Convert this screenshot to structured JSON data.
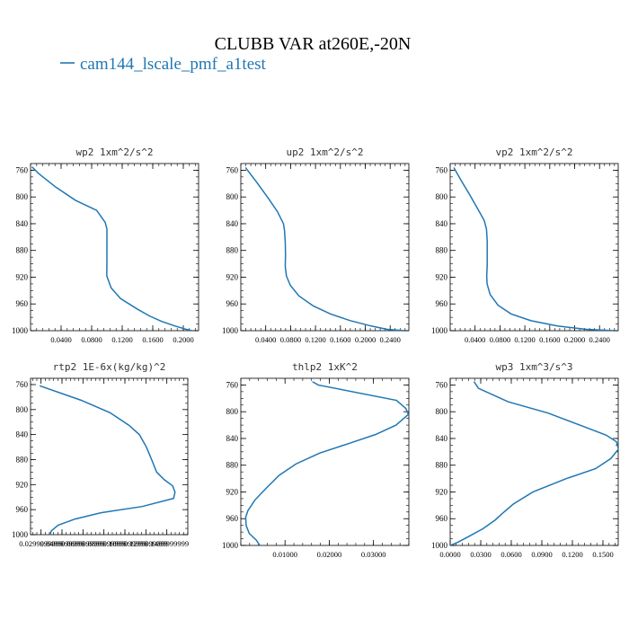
{
  "figure": {
    "title": "CLUBB VAR at260E,-20N",
    "legend_label": "cam144_lscale_pmf_a1test",
    "line_color": "#1f77b4"
  },
  "chart_data": [
    {
      "type": "line",
      "title": "wp2   1xm^2/s^2",
      "xlim": [
        0.0,
        0.22
      ],
      "ylim": [
        1000,
        750
      ],
      "x_ticks": [
        0.04,
        0.08,
        0.12,
        0.16,
        0.2
      ],
      "x_tick_labels": [
        "0.0400",
        "0.0800",
        "0.1200",
        "0.1600",
        "0.2000"
      ],
      "y_ticks": [
        760,
        800,
        840,
        880,
        920,
        960,
        1000
      ],
      "y_tick_labels": [
        "760",
        "800",
        "840",
        "880",
        "920",
        "960",
        "1000"
      ],
      "series": [
        {
          "x": [
            0.2115,
            0.2037,
            0.1892,
            0.1713,
            0.1557,
            0.1402,
            0.1178,
            0.1055,
            0.0998,
            0.1,
            0.1,
            0.1,
            0.0977,
            0.0865,
            0.0588,
            0.0327,
            0.0107,
            0.0018
          ],
          "y": [
            1000,
            998,
            993,
            986,
            978,
            968,
            952,
            936,
            918,
            896,
            872,
            848,
            838,
            820,
            805,
            785,
            765,
            755
          ]
        }
      ]
    },
    {
      "type": "line",
      "title": "up2   1xm^2/s^2",
      "xlim": [
        0.0,
        0.27
      ],
      "ylim": [
        1000,
        750
      ],
      "x_ticks": [
        0.04,
        0.08,
        0.12,
        0.16,
        0.2,
        0.24
      ],
      "x_tick_labels": [
        "0.0400",
        "0.0800",
        "0.1200",
        "0.1600",
        "0.2000",
        "0.2400"
      ],
      "y_ticks": [
        760,
        800,
        840,
        880,
        920,
        960,
        1000
      ],
      "y_tick_labels": [
        "760",
        "800",
        "840",
        "880",
        "920",
        "960",
        "1000"
      ],
      "series": [
        {
          "x": [
            0.2632,
            0.2351,
            0.2094,
            0.1758,
            0.1442,
            0.1164,
            0.0934,
            0.0794,
            0.0732,
            0.0714,
            0.0718,
            0.0714,
            0.0702,
            0.0685,
            0.0589,
            0.0442,
            0.0271,
            0.0075
          ],
          "y": [
            1000,
            998,
            993,
            985,
            975,
            963,
            948,
            932,
            918,
            904,
            886,
            868,
            850,
            840,
            822,
            802,
            780,
            756
          ]
        }
      ]
    },
    {
      "type": "line",
      "title": "vp2   1xm^2/s^2",
      "xlim": [
        0.0,
        0.27
      ],
      "ylim": [
        1000,
        750
      ],
      "x_ticks": [
        0.04,
        0.08,
        0.12,
        0.16,
        0.2,
        0.24
      ],
      "x_tick_labels": [
        "0.0400",
        "0.0800",
        "0.1200",
        "0.1600",
        "0.2000",
        "0.2400"
      ],
      "y_ticks": [
        760,
        800,
        840,
        880,
        920,
        960,
        1000
      ],
      "y_tick_labels": [
        "760",
        "800",
        "840",
        "880",
        "920",
        "960",
        "1000"
      ],
      "series": [
        {
          "x": [
            0.2636,
            0.2191,
            0.1722,
            0.1298,
            0.098,
            0.0769,
            0.0642,
            0.0593,
            0.0587,
            0.0595,
            0.0595,
            0.0595,
            0.0583,
            0.0546,
            0.0426,
            0.0303,
            0.0174,
            0.0058
          ],
          "y": [
            1000,
            998,
            993,
            985,
            975,
            962,
            946,
            930,
            918,
            902,
            884,
            866,
            848,
            835,
            815,
            795,
            775,
            756
          ]
        }
      ]
    },
    {
      "type": "line",
      "title": "rtp2   1E-6x(kg/kg)^2",
      "xlim": [
        0.02,
        0.17
      ],
      "ylim": [
        1000,
        750
      ],
      "x_ticks": [
        0.03,
        0.05,
        0.07,
        0.09,
        0.11,
        0.13,
        0.15
      ],
      "x_tick_labels": [
        "0.0299999999",
        "0.0499999999",
        "0.0699999999",
        "0.0899999999",
        "0.1099999999",
        "0.1299999999",
        "0.1499999999"
      ],
      "y_ticks": [
        760,
        800,
        840,
        880,
        920,
        960,
        1000
      ],
      "y_tick_labels": [
        "760",
        "800",
        "840",
        "880",
        "920",
        "960",
        "1000"
      ],
      "series": [
        {
          "x": [
            0.0385,
            0.0398,
            0.0462,
            0.0625,
            0.0872,
            0.1265,
            0.1565,
            0.1578,
            0.1555,
            0.1475,
            0.1403,
            0.1355,
            0.1305,
            0.1238,
            0.1138,
            0.0958,
            0.0681,
            0.0287
          ],
          "y": [
            1000,
            994,
            985,
            975,
            965,
            955,
            942,
            932,
            922,
            912,
            900,
            880,
            860,
            840,
            825,
            805,
            785,
            762
          ]
        }
      ]
    },
    {
      "type": "line",
      "title": "thlp2   1xK^2",
      "xlim": [
        0.0,
        0.038
      ],
      "ylim": [
        1000,
        750
      ],
      "x_ticks": [
        0.01,
        0.02,
        0.03
      ],
      "x_tick_labels": [
        "0.01000",
        "0.02000",
        "0.03000"
      ],
      "y_ticks": [
        760,
        800,
        840,
        880,
        920,
        960,
        1000
      ],
      "y_tick_labels": [
        "760",
        "800",
        "840",
        "880",
        "920",
        "960",
        "1000"
      ],
      "series": [
        {
          "x": [
            0.0043,
            0.0035,
            0.0019,
            0.0012,
            0.0011,
            0.0016,
            0.0032,
            0.0058,
            0.0087,
            0.0125,
            0.0178,
            0.0242,
            0.0305,
            0.0351,
            0.0379,
            0.0373,
            0.0352,
            0.0175,
            0.0162
          ],
          "y": [
            1000,
            992,
            982,
            970,
            958,
            948,
            932,
            914,
            895,
            878,
            862,
            848,
            834,
            820,
            804,
            795,
            783,
            760,
            755
          ]
        }
      ]
    },
    {
      "type": "line",
      "title": "wp3   1xm^3/s^3",
      "xlim": [
        0.0,
        0.165
      ],
      "ylim": [
        1000,
        750
      ],
      "x_ticks": [
        0.0,
        0.03,
        0.06,
        0.09,
        0.12,
        0.15
      ],
      "x_tick_labels": [
        "0.0000",
        "0.0300",
        "0.0600",
        "0.0900",
        "0.1200",
        "0.1500"
      ],
      "y_ticks": [
        760,
        800,
        840,
        880,
        920,
        960,
        1000
      ],
      "y_tick_labels": [
        "760",
        "800",
        "840",
        "880",
        "920",
        "960",
        "1000"
      ],
      "series": [
        {
          "x": [
            0.0001,
            0.0078,
            0.0202,
            0.0322,
            0.0442,
            0.0513,
            0.0621,
            0.0813,
            0.1142,
            0.1429,
            0.1578,
            0.1652,
            0.1633,
            0.1532,
            0.1308,
            0.0961,
            0.0568,
            0.0278,
            0.0234
          ],
          "y": [
            1000,
            995,
            985,
            975,
            962,
            952,
            938,
            920,
            900,
            885,
            870,
            856,
            845,
            835,
            822,
            802,
            785,
            765,
            755
          ]
        }
      ]
    }
  ]
}
